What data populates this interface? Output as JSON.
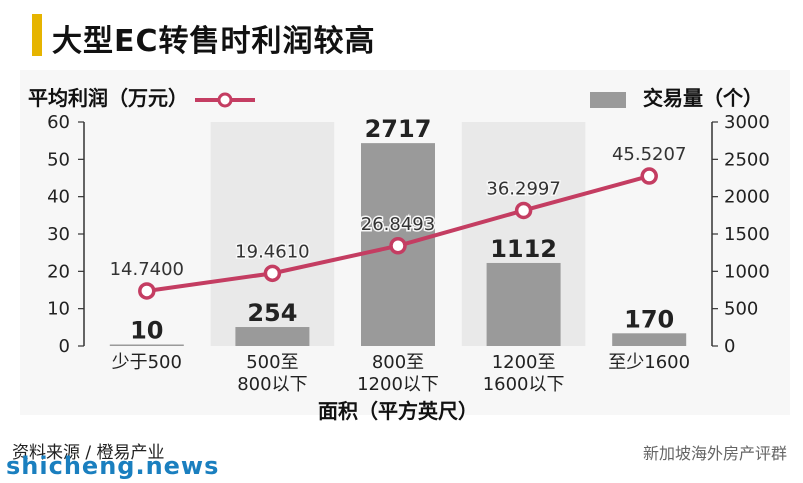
{
  "title": "大型EC转售时利润较高",
  "legend": {
    "left_label": "平均利润（万元）",
    "right_label": "交易量（个）"
  },
  "footer": {
    "source": "资料来源 / 橙易产业",
    "credit": "新加坡海外房产评群",
    "watermark": "shicheng.news"
  },
  "colors": {
    "bar": "#9a9a9a",
    "line": "#c43d62",
    "highlight_band": "#e9e9e9",
    "title_bar": "#e6b400"
  },
  "chart_data": {
    "type": "bar",
    "categories": [
      "少于500",
      "500至\n800以下",
      "800至\n1200以下",
      "1200至\n1600以下",
      "至少1600"
    ],
    "xlabel": "面积（平方英尺）",
    "ylabel_left": "平均利润（万元）",
    "ylabel_right": "交易量（个）",
    "ylim_left": [
      0,
      60
    ],
    "ylim_right": [
      0,
      3000
    ],
    "yticks_left": [
      0,
      10,
      20,
      30,
      40,
      50,
      60
    ],
    "yticks_right": [
      0,
      500,
      1000,
      1500,
      2000,
      2500,
      3000
    ],
    "series": [
      {
        "name": "交易量（个）",
        "type": "bar",
        "axis": "right",
        "values": [
          10,
          254,
          2717,
          1112,
          170
        ],
        "labels": [
          "10",
          "254",
          "2717",
          "1112",
          "170"
        ]
      },
      {
        "name": "平均利润（万元）",
        "type": "line",
        "axis": "left",
        "values": [
          14.74,
          19.461,
          26.8493,
          36.2997,
          45.5207
        ],
        "labels": [
          "14.7400",
          "19.4610",
          "26.8493",
          "36.2997",
          "45.5207"
        ]
      }
    ]
  }
}
